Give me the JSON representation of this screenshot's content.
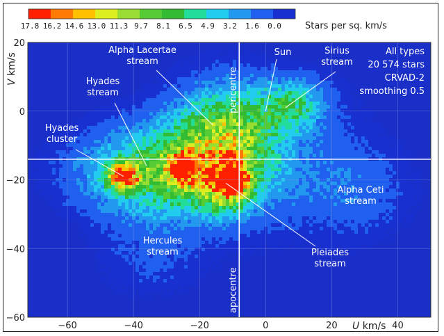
{
  "chart_data": {
    "type": "heatmap",
    "title": "",
    "xlabel": "U km/s",
    "ylabel": "V km/s",
    "xlabel_parts": {
      "symbol": "U",
      "unit": "km/s"
    },
    "ylabel_parts": {
      "symbol": "V",
      "unit": "km/s"
    },
    "xlim": [
      -72,
      50
    ],
    "ylim": [
      -60,
      20
    ],
    "x_ticks": [
      -60,
      -40,
      -20,
      0,
      20,
      40
    ],
    "y_ticks": [
      20,
      0,
      -20,
      -40,
      -60
    ],
    "grid": true,
    "colorbar": {
      "label": "Stars per sq. km/s",
      "ticks": [
        "17.8",
        "16.2",
        "14.6",
        "13.0",
        "11.3",
        "9.7",
        "8.1",
        "6.5",
        "4.9",
        "3.2",
        "1.6",
        "0.0"
      ],
      "colors": [
        "#ff2000",
        "#ff7a00",
        "#ffc000",
        "#ddee20",
        "#99dd33",
        "#55cc33",
        "#33bb33",
        "#22dd99",
        "#22ccee",
        "#2299ee",
        "#2060ee",
        "#1830d0"
      ]
    },
    "reference_lines": {
      "vertical_u": -8,
      "horizontal_v": -14
    },
    "reference_labels": {
      "top": "pericentre",
      "bottom": "apocentre"
    },
    "info_lines": [
      "All types",
      "20 574 stars",
      "CRVAD-2",
      "smoothing 0.5"
    ],
    "annotations": [
      {
        "lines": [
          "Alpha Lacertae",
          "stream"
        ],
        "points_to": [
          -16,
          -4
        ]
      },
      {
        "lines": [
          "Hyades",
          "stream"
        ],
        "points_to": [
          -36,
          -16
        ]
      },
      {
        "lines": [
          "Hyades",
          "cluster"
        ],
        "points_to": [
          -43,
          -19
        ]
      },
      {
        "lines": [
          "Sun"
        ],
        "points_to": [
          0,
          0
        ]
      },
      {
        "lines": [
          "Sirius",
          "stream"
        ],
        "points_to": [
          6,
          1
        ]
      },
      {
        "lines": [
          "Alpha Ceti",
          "stream"
        ],
        "points_to": null
      },
      {
        "lines": [
          "Hercules",
          "stream"
        ],
        "points_to": null
      },
      {
        "lines": [
          "Pleiades",
          "stream"
        ],
        "points_to": [
          -12,
          -21
        ]
      }
    ],
    "density_clusters": [
      {
        "u": -30,
        "v": -18,
        "su": 18,
        "sv": 9,
        "peak": 9
      },
      {
        "u": -12,
        "v": -6,
        "su": 10,
        "sv": 9,
        "peak": 8
      },
      {
        "u": -43,
        "v": -19,
        "su": 3,
        "sv": 2.5,
        "peak": 16
      },
      {
        "u": -12,
        "v": -21,
        "su": 5,
        "sv": 5,
        "peak": 11
      },
      {
        "u": -25,
        "v": -17,
        "su": 3,
        "sv": 3,
        "peak": 13
      },
      {
        "u": -9,
        "v": -20,
        "su": 2,
        "sv": 2,
        "peak": 15
      },
      {
        "u": 8,
        "v": 2,
        "su": 7,
        "sv": 5,
        "peak": 6
      },
      {
        "u": -5,
        "v": -12,
        "su": 22,
        "sv": 16,
        "peak": 3
      },
      {
        "u": 28,
        "v": -24,
        "su": 12,
        "sv": 10,
        "peak": 2
      },
      {
        "u": -35,
        "v": -44,
        "su": 12,
        "sv": 8,
        "peak": 1.6
      }
    ]
  }
}
